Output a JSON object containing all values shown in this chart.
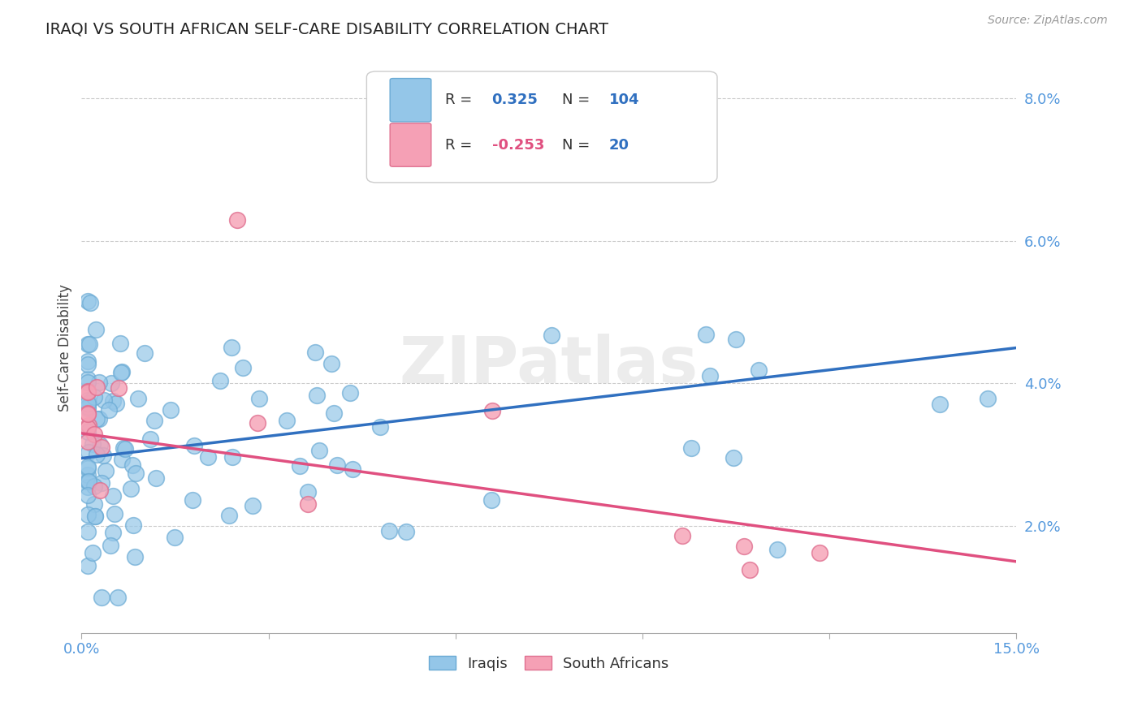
{
  "title": "IRAQI VS SOUTH AFRICAN SELF-CARE DISABILITY CORRELATION CHART",
  "source": "Source: ZipAtlas.com",
  "ylabel": "Self-Care Disability",
  "xmin": 0.0,
  "xmax": 0.15,
  "ymin": 0.005,
  "ymax": 0.085,
  "yticks": [
    0.02,
    0.04,
    0.06,
    0.08
  ],
  "ytick_labels": [
    "2.0%",
    "4.0%",
    "6.0%",
    "8.0%"
  ],
  "xticks": [
    0.0,
    0.03,
    0.06,
    0.09,
    0.12,
    0.15
  ],
  "xtick_labels": [
    "0.0%",
    "",
    "",
    "",
    "",
    "15.0%"
  ],
  "grid_color": "#cccccc",
  "background_color": "#ffffff",
  "iraqi_color": "#94C6E8",
  "iraqi_edge_color": "#6AAAD4",
  "sa_color": "#F5A0B5",
  "sa_edge_color": "#E07090",
  "blue_line_color": "#3070C0",
  "pink_line_color": "#E05080",
  "legend_r_iraqi": "0.325",
  "legend_n_iraqi": "104",
  "legend_r_sa": "-0.253",
  "legend_n_sa": "20",
  "watermark": "ZIPatlas",
  "blue_line_x0": 0.0,
  "blue_line_x1": 0.15,
  "blue_line_y0": 0.0295,
  "blue_line_y1": 0.045,
  "pink_line_x0": 0.0,
  "pink_line_x1": 0.15,
  "pink_line_y0": 0.033,
  "pink_line_y1": 0.015
}
